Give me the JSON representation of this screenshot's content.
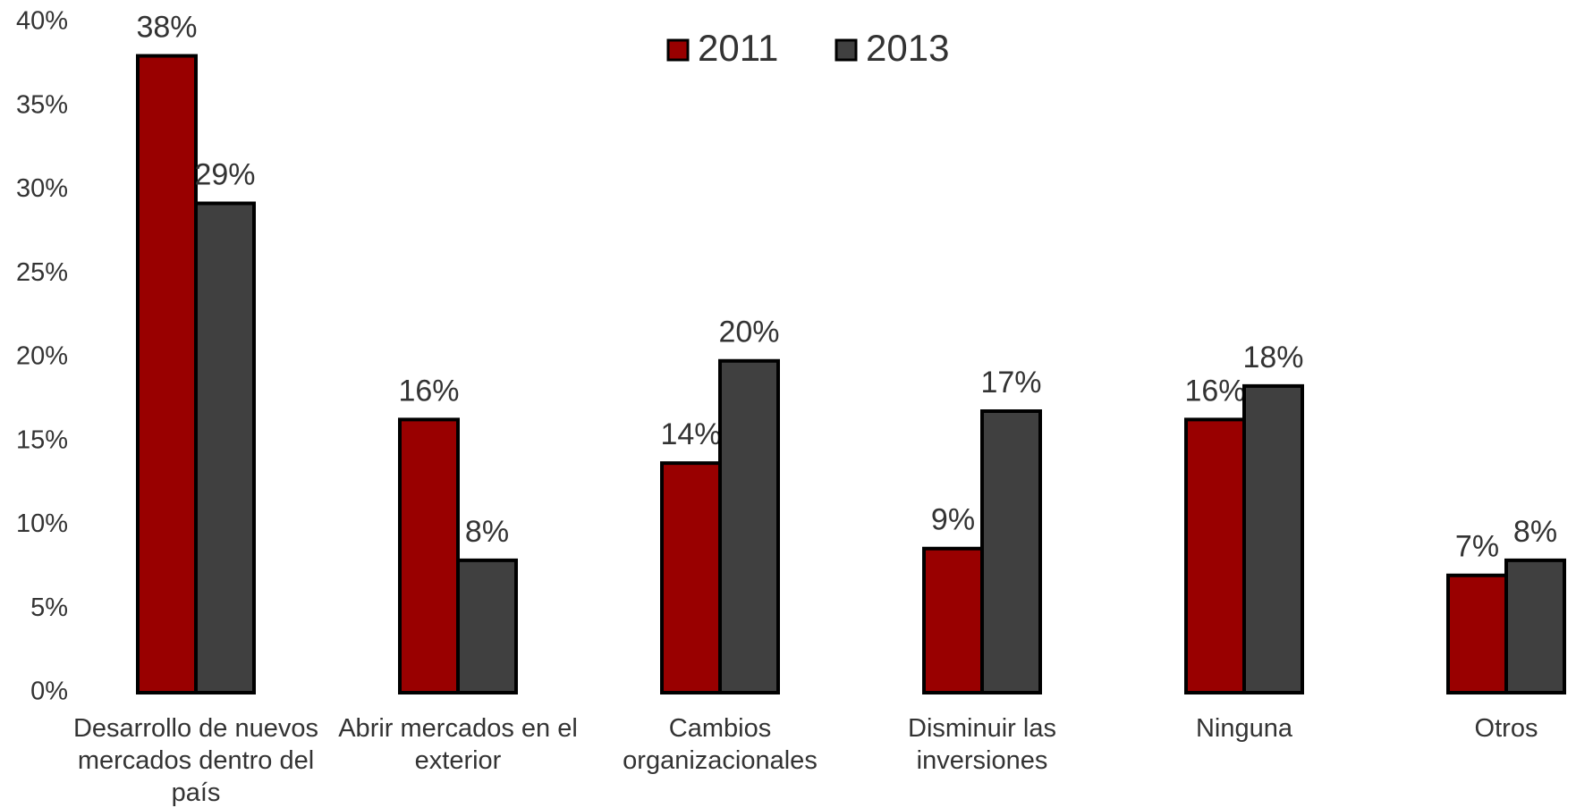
{
  "chart_data": {
    "type": "bar",
    "categories": [
      "Desarrollo de nuevos mercados dentro del país",
      "Abrir mercados en el exterior",
      "Cambios organizacionales",
      "Disminuir las inversiones",
      "Ninguna",
      "Otros"
    ],
    "series": [
      {
        "name": "2011",
        "color": "#990000",
        "values": [
          38,
          16.3,
          13.7,
          8.6,
          16.3,
          7.0
        ],
        "value_labels": [
          "38%",
          "16%",
          "14%",
          "9%",
          "16%",
          "7%"
        ]
      },
      {
        "name": "2013",
        "color": "#404040",
        "values": [
          29.2,
          7.9,
          19.8,
          16.8,
          18.3,
          7.9
        ],
        "value_labels": [
          "29%",
          "8%",
          "20%",
          "17%",
          "18%",
          "8%"
        ]
      }
    ],
    "ylim": [
      0,
      40
    ],
    "yticks": [
      {
        "value": 0,
        "label": "0%"
      },
      {
        "value": 5,
        "label": "5%"
      },
      {
        "value": 10,
        "label": "10%"
      },
      {
        "value": 15,
        "label": "15%"
      },
      {
        "value": 20,
        "label": "20%"
      },
      {
        "value": 25,
        "label": "25%"
      },
      {
        "value": 30,
        "label": "30%"
      },
      {
        "value": 35,
        "label": "35%"
      },
      {
        "value": 40,
        "label": "40%"
      }
    ],
    "grid": false,
    "legend": "top"
  }
}
